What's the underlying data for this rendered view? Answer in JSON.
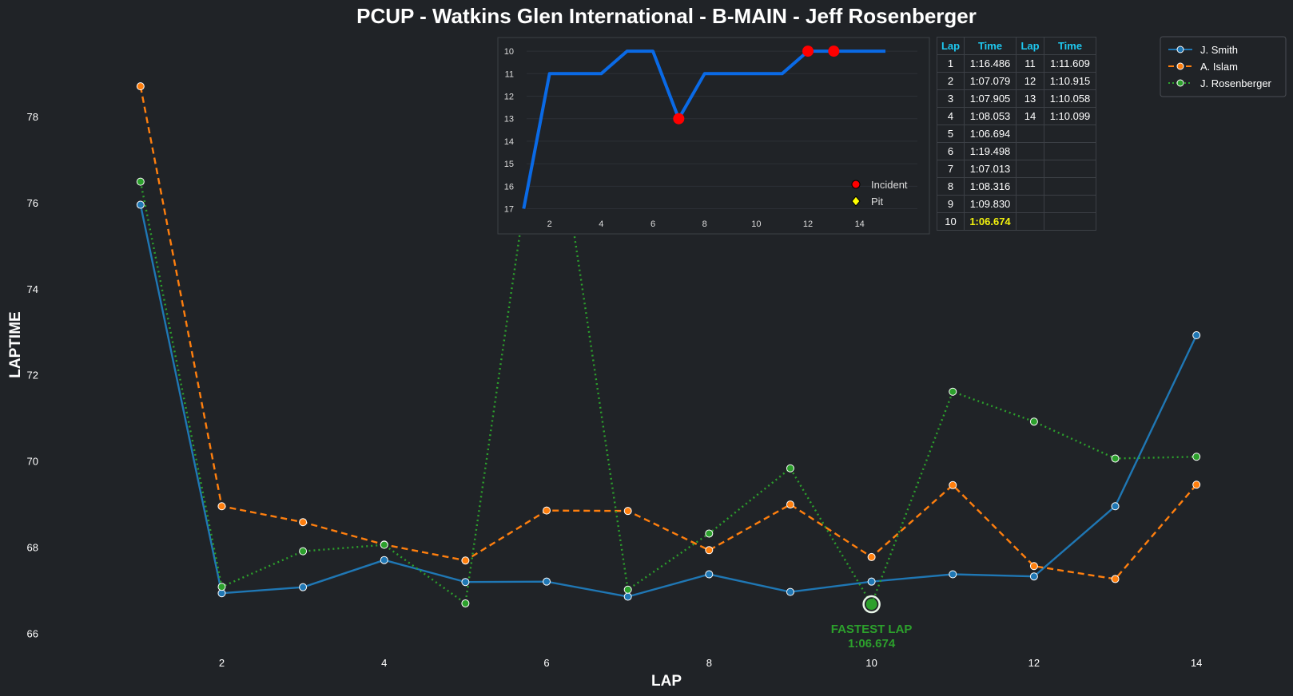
{
  "chart_data": [
    {
      "type": "line",
      "title": "PCUP - Watkins Glen International - B-MAIN - Jeff Rosenberger",
      "xlabel": "LAP",
      "ylabel": "LAPTIME",
      "x": [
        1,
        2,
        3,
        4,
        5,
        6,
        7,
        8,
        9,
        10,
        11,
        12,
        13,
        14
      ],
      "xticks": [
        2,
        4,
        6,
        8,
        10,
        12,
        14
      ],
      "yticks": [
        66,
        68,
        70,
        72,
        74,
        76,
        78
      ],
      "xlim": [
        0.5,
        14.5
      ],
      "ylim": [
        65.6,
        80
      ],
      "grid": false,
      "legend_position": "top-right",
      "series": [
        {
          "name": "J. Smith",
          "color": "#1f77b4",
          "dash": "solid",
          "values": [
            75.95,
            66.93,
            67.07,
            67.7,
            67.19,
            67.2,
            66.85,
            67.37,
            66.96,
            67.2,
            67.37,
            67.32,
            68.95,
            72.92
          ]
        },
        {
          "name": "A. Islam",
          "color": "#ff7f0e",
          "dash": "dashed",
          "values": [
            78.7,
            68.95,
            68.58,
            68.06,
            67.69,
            68.85,
            68.84,
            67.93,
            68.99,
            67.77,
            69.44,
            67.56,
            67.26,
            69.45
          ]
        },
        {
          "name": "J. Rosenberger",
          "color": "#2ca02c",
          "dash": "dotted",
          "values": [
            76.486,
            67.079,
            67.905,
            68.053,
            66.694,
            79.498,
            67.013,
            68.316,
            69.83,
            66.674,
            71.609,
            70.915,
            70.058,
            70.099
          ]
        }
      ],
      "annotations": [
        {
          "text": "FASTEST LAP",
          "subtext": "1:06.674",
          "x": 10,
          "y": 66.674,
          "color": "#2ca02c"
        }
      ]
    },
    {
      "type": "line",
      "title": "",
      "x": [
        1,
        2,
        3,
        4,
        5,
        6,
        7,
        8,
        9,
        10,
        11,
        12,
        13,
        14,
        15
      ],
      "values": [
        17,
        11,
        11,
        11,
        10,
        10,
        13,
        11,
        11,
        11,
        11,
        10,
        10,
        10,
        10
      ],
      "xticks": [
        2,
        4,
        6,
        8,
        10,
        12,
        14
      ],
      "yticks": [
        10,
        11,
        12,
        13,
        14,
        15,
        16,
        17
      ],
      "xlim": [
        0.0,
        16.7
      ],
      "ylim_inverted": [
        9.5,
        17.3
      ],
      "line_color": "#0a6ae6",
      "markers": [
        {
          "x": 7,
          "y": 13,
          "kind": "Incident"
        },
        {
          "x": 12,
          "y": 10,
          "kind": "Incident"
        },
        {
          "x": 13,
          "y": 10,
          "kind": "Incident"
        }
      ],
      "legend": [
        {
          "label": "Incident",
          "color": "#ff0000",
          "marker": "circle"
        },
        {
          "label": "Pit",
          "color": "#ffff00",
          "marker": "diamond"
        }
      ],
      "legend_position": "bottom-right",
      "grid": true
    }
  ],
  "lap_table": {
    "headers": [
      "Lap",
      "Time",
      "Lap",
      "Time"
    ],
    "best_time": "1:06.674",
    "rows": [
      [
        "1",
        "1:16.486",
        "11",
        "1:11.609"
      ],
      [
        "2",
        "1:07.079",
        "12",
        "1:10.915"
      ],
      [
        "3",
        "1:07.905",
        "13",
        "1:10.058"
      ],
      [
        "4",
        "1:08.053",
        "14",
        "1:10.099"
      ],
      [
        "5",
        "1:06.694",
        "",
        ""
      ],
      [
        "6",
        "1:19.498",
        "",
        ""
      ],
      [
        "7",
        "1:07.013",
        "",
        ""
      ],
      [
        "8",
        "1:08.316",
        "",
        ""
      ],
      [
        "9",
        "1:09.830",
        "",
        ""
      ],
      [
        "10",
        "1:06.674",
        "",
        ""
      ]
    ]
  }
}
